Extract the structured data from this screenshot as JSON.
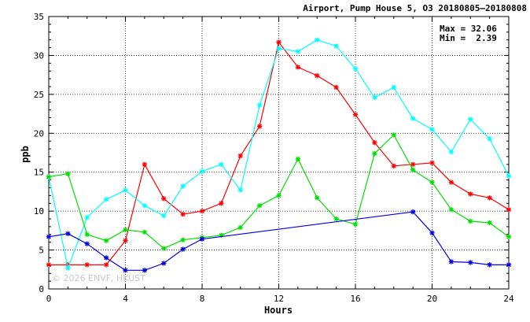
{
  "chart_data": {
    "type": "line",
    "title": "Airport, Pump House 5, O3 20180805—20180808",
    "xlabel": "Hours",
    "ylabel": "ppb",
    "xlim": [
      0,
      24
    ],
    "ylim": [
      0,
      35
    ],
    "xticks": [
      "0",
      "4",
      "8",
      "12",
      "16",
      "20",
      "24"
    ],
    "yticks": [
      "0",
      "5",
      "10",
      "15",
      "20",
      "25",
      "30",
      "35"
    ],
    "grid": true,
    "stats": {
      "max": "Max = 32.06",
      "min": "Min =  2.39"
    },
    "watermark": "© 2026 ENVF, HKUST",
    "series": [
      {
        "color": "#ff0000",
        "x": [
          0,
          1,
          2,
          3,
          4,
          5,
          6,
          7,
          8,
          9,
          10,
          11,
          12,
          13,
          14,
          15,
          16,
          17,
          18,
          19,
          20,
          21,
          22,
          23,
          24
        ],
        "y": [
          3.1,
          3.1,
          3.1,
          3.1,
          6.2,
          16.0,
          11.6,
          9.6,
          10.0,
          11.0,
          17.1,
          20.9,
          31.7,
          28.5,
          27.4,
          25.9,
          22.4,
          18.8,
          15.8,
          16.0,
          16.2,
          13.7,
          12.2,
          11.7,
          10.2
        ]
      },
      {
        "color": "#00ffff",
        "x": [
          0,
          1,
          2,
          3,
          4,
          5,
          6,
          7,
          8,
          9,
          10,
          11,
          12,
          13,
          14,
          15,
          16,
          17,
          18,
          19,
          20,
          21,
          22,
          23,
          24
        ],
        "y": [
          14.4,
          2.7,
          9.2,
          11.5,
          12.7,
          10.7,
          9.4,
          13.2,
          15.1,
          16.0,
          12.7,
          23.6,
          30.9,
          30.5,
          32.0,
          31.2,
          28.3,
          24.6,
          25.9,
          21.9,
          20.5,
          17.6,
          21.8,
          19.3,
          14.5
        ]
      },
      {
        "color": "#00e000",
        "x": [
          0,
          1,
          2,
          3,
          4,
          5,
          6,
          7,
          8,
          9,
          10,
          11,
          12,
          13,
          14,
          15,
          16,
          17,
          18,
          19,
          20,
          21,
          22,
          23,
          24
        ],
        "y": [
          14.4,
          14.8,
          7.0,
          6.2,
          7.6,
          7.3,
          5.2,
          6.3,
          6.6,
          6.9,
          7.9,
          10.7,
          12.0,
          16.7,
          11.7,
          9.0,
          8.3,
          17.4,
          19.8,
          15.3,
          13.7,
          10.2,
          8.7,
          8.5,
          6.7
        ]
      },
      {
        "color": "#0000e0",
        "x": [
          0,
          1,
          2,
          3,
          4,
          5,
          6,
          7,
          8,
          19,
          20,
          21,
          22,
          23,
          24
        ],
        "y": [
          6.7,
          7.1,
          5.8,
          4.0,
          2.4,
          2.4,
          3.3,
          5.1,
          6.4,
          9.9,
          7.2,
          3.5,
          3.4,
          3.1,
          3.1
        ]
      }
    ]
  }
}
